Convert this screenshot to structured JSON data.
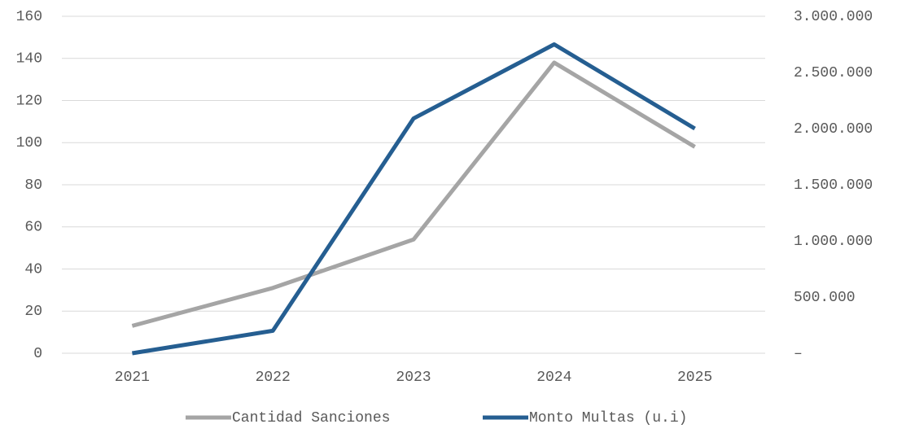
{
  "chart_data": {
    "type": "line",
    "categories": [
      "2021",
      "2022",
      "2023",
      "2024",
      "2025"
    ],
    "series": [
      {
        "name": "Cantidad Sanciones",
        "color": "#a5a5a5",
        "values": [
          13,
          31,
          54,
          138,
          98
        ]
      },
      {
        "name": "Monto Multas (u.i)",
        "color": "#255e91",
        "axis": "y2",
        "values": [
          0,
          200000,
          2090000,
          2750000,
          2000000
        ]
      }
    ],
    "ylim": [
      0,
      160
    ],
    "yticks": [
      0,
      20,
      40,
      60,
      80,
      100,
      120,
      140,
      160
    ],
    "y2lim": [
      0,
      3000000
    ],
    "y2ticks": [
      {
        "value": 0,
        "label": "–"
      },
      {
        "value": 500000,
        "label": "500.000"
      },
      {
        "value": 1000000,
        "label": "1.000.000"
      },
      {
        "value": 1500000,
        "label": "1.500.000"
      },
      {
        "value": 2000000,
        "label": "2.000.000"
      },
      {
        "value": 2500000,
        "label": "2.500.000"
      },
      {
        "value": 3000000,
        "label": "3.000.000"
      }
    ],
    "grid": true,
    "legend": "bottom"
  }
}
